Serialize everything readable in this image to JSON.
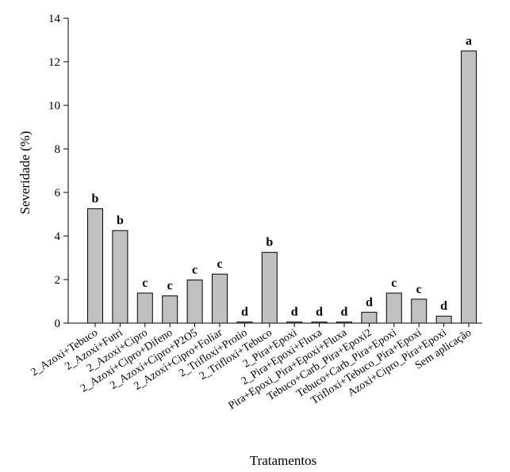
{
  "chart_data": {
    "type": "bar",
    "title": "",
    "xlabel": "Tratamentos",
    "ylabel": "Severidade (%)",
    "ylim": [
      0,
      14
    ],
    "yticks": [
      0,
      2,
      4,
      6,
      8,
      10,
      12,
      14
    ],
    "grid": false,
    "categories": [
      "2_Azoxi+Tebuco",
      "2_Azoxi+Futri",
      "2_Azoxi+Cipro",
      "2_Azoxi+Cipro+Difeno",
      "2_Azoxi+Cipro+P2O5",
      "2_Azoxi+Cipro+Foliar",
      "2_Trifloxi+Protio",
      "2_Trifloxi+Tebuco",
      "2_Pira+Epoxi",
      "2_Pira+Epoxi+Fluxa",
      "Pira+Epoxi_Pira+Epoxi+Fluxa",
      "Tebuco+Carb_Pira+Epoxi2",
      "Tebuco+Carb_Pira+Epoxi",
      "Trifloxi+Tebuco_Pira+Epoxi",
      "Azoxi+Cipro_Pira+Epoxi",
      "Sem aplicação"
    ],
    "values": [
      5.25,
      4.25,
      1.38,
      1.25,
      1.98,
      2.25,
      0.05,
      3.25,
      0.05,
      0.05,
      0.05,
      0.5,
      1.38,
      1.1,
      0.32,
      12.5
    ],
    "significance_letters": [
      "b",
      "b",
      "c",
      "c",
      "c",
      "c",
      "d",
      "b",
      "d",
      "d",
      "d",
      "d",
      "c",
      "c",
      "d",
      "a"
    ]
  }
}
